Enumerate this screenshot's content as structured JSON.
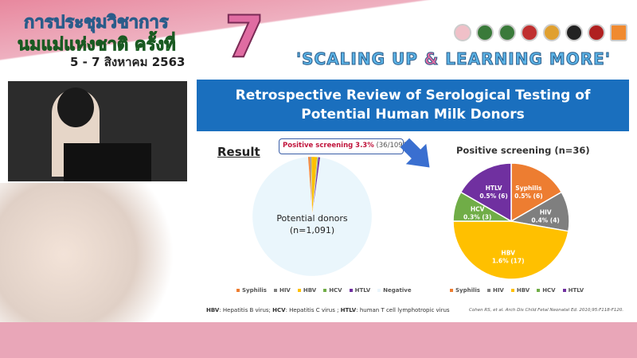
{
  "header": {
    "title_line1": "การประชุมวิชาการ",
    "title_line2": "นมแม่แห่งชาติ ครั้งที่",
    "dates": "5 - 7 สิงหาคม 2563",
    "number": "7",
    "slogan_a": "'SCALING UP ",
    "slogan_amp": "&",
    "slogan_b": " LEARNING MORE'"
  },
  "slide": {
    "title_line1": "Retrospective Review of Serological Testing of",
    "title_line2": "Potential Human Milk Donors",
    "result_label": "Result",
    "callout_bold": "Positive screening 3.3%",
    "callout_rest": " (36/1091)",
    "footnote": {
      "a": "HBV",
      "a_text": ": Hepatitis B virus; ",
      "b": "HCV",
      "b_text": ": Hepatitis C virus ; ",
      "c": "HTLV",
      "c_text": ": human T cell lymphotropic virus"
    },
    "citation": "Cohen RS, et al. Arch Dis Child Fetal Neonatal Ed. 2010;95:F118-F120."
  },
  "chart_data": [
    {
      "type": "pie",
      "center_label_1": "Potential donors",
      "center_label_2": "(n=1,091)",
      "categories": [
        "Syphilis",
        "HIV",
        "HBV",
        "HCV",
        "HTLV",
        "Negative"
      ],
      "values": [
        6,
        4,
        17,
        3,
        6,
        1055
      ],
      "colors": [
        "#ed7d31",
        "#7f7f7f",
        "#ffc000",
        "#70ad47",
        "#7030a0",
        "#eaf6fc"
      ],
      "legend": "bottom"
    },
    {
      "type": "pie",
      "title": "Positive screening (n=36)",
      "categories": [
        "Syphilis",
        "HIV",
        "HBV",
        "HCV",
        "HTLV"
      ],
      "values": [
        6,
        4,
        17,
        3,
        6
      ],
      "labels": [
        "0.5% (6)",
        "0.4% (4)",
        "1.6% (17)",
        "0.3% (3)",
        "0.5% (6)"
      ],
      "colors": [
        "#ed7d31",
        "#7f7f7f",
        "#ffc000",
        "#70ad47",
        "#7030a0"
      ],
      "legend": "bottom"
    }
  ]
}
